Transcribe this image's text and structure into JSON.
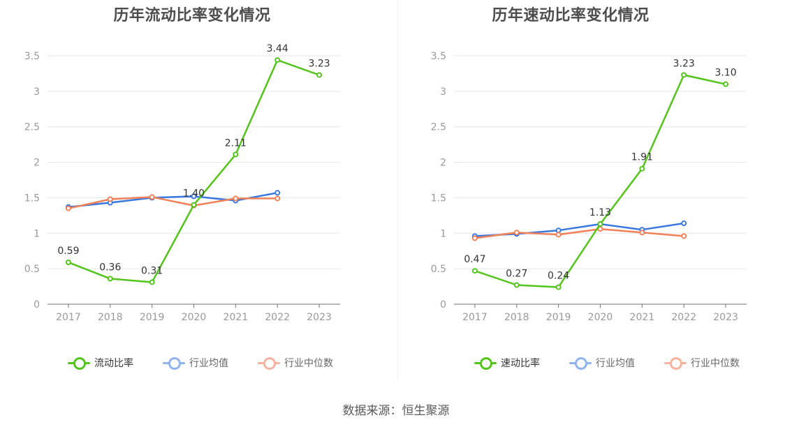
{
  "source_text": "数据来源：恒生聚源",
  "charts": [
    {
      "title": "历年流动比率变化情况",
      "legend": [
        {
          "label": "流动比率",
          "color": "#52c41a",
          "faded": false
        },
        {
          "label": "行业均值",
          "color": "#8fb3ee",
          "faded": true
        },
        {
          "label": "行业中位数",
          "color": "#f5b29c",
          "faded": true
        }
      ]
    },
    {
      "title": "历年速动比率变化情况",
      "legend": [
        {
          "label": "速动比率",
          "color": "#52c41a",
          "faded": false
        },
        {
          "label": "行业均值",
          "color": "#8fb3ee",
          "faded": true
        },
        {
          "label": "行业中位数",
          "color": "#f5b29c",
          "faded": true
        }
      ]
    }
  ],
  "chart_data": [
    {
      "type": "line",
      "title": "历年流动比率变化情况",
      "categories": [
        "2017",
        "2018",
        "2019",
        "2020",
        "2021",
        "2022",
        "2023"
      ],
      "ylim": [
        0,
        3.5
      ],
      "yticks": [
        "0",
        "0.5",
        "1",
        "1.5",
        "2",
        "2.5",
        "3",
        "3.5"
      ],
      "grid": true,
      "legend_position": "bottom",
      "series": [
        {
          "name": "流动比率",
          "color": "#52c41a",
          "values": [
            0.59,
            0.36,
            0.31,
            1.4,
            2.11,
            3.44,
            3.23
          ],
          "labels": [
            "0.59",
            "0.36",
            "0.31",
            "1.40",
            "2.11",
            "3.44",
            "3.23"
          ]
        },
        {
          "name": "行业均值",
          "color": "#3a78e0",
          "values": [
            1.37,
            1.43,
            1.5,
            1.52,
            1.46,
            1.57,
            null
          ]
        },
        {
          "name": "行业中位数",
          "color": "#f08158",
          "values": [
            1.35,
            1.48,
            1.51,
            1.39,
            1.49,
            1.49,
            null
          ]
        }
      ]
    },
    {
      "type": "line",
      "title": "历年速动比率变化情况",
      "categories": [
        "2017",
        "2018",
        "2019",
        "2020",
        "2021",
        "2022",
        "2023"
      ],
      "ylim": [
        0,
        3.5
      ],
      "yticks": [
        "0",
        "0.5",
        "1",
        "1.5",
        "2",
        "2.5",
        "3",
        "3.5"
      ],
      "grid": true,
      "legend_position": "bottom",
      "series": [
        {
          "name": "速动比率",
          "color": "#52c41a",
          "values": [
            0.47,
            0.27,
            0.24,
            1.13,
            1.91,
            3.23,
            3.1
          ],
          "labels": [
            "0.47",
            "0.27",
            "0.24",
            "1.13",
            "1.91",
            "3.23",
            "3.10"
          ]
        },
        {
          "name": "行业均值",
          "color": "#3a78e0",
          "values": [
            0.96,
            0.99,
            1.04,
            1.13,
            1.05,
            1.14,
            null
          ]
        },
        {
          "name": "行业中位数",
          "color": "#f08158",
          "values": [
            0.93,
            1.01,
            0.98,
            1.06,
            1.01,
            0.96,
            null
          ]
        }
      ]
    }
  ]
}
